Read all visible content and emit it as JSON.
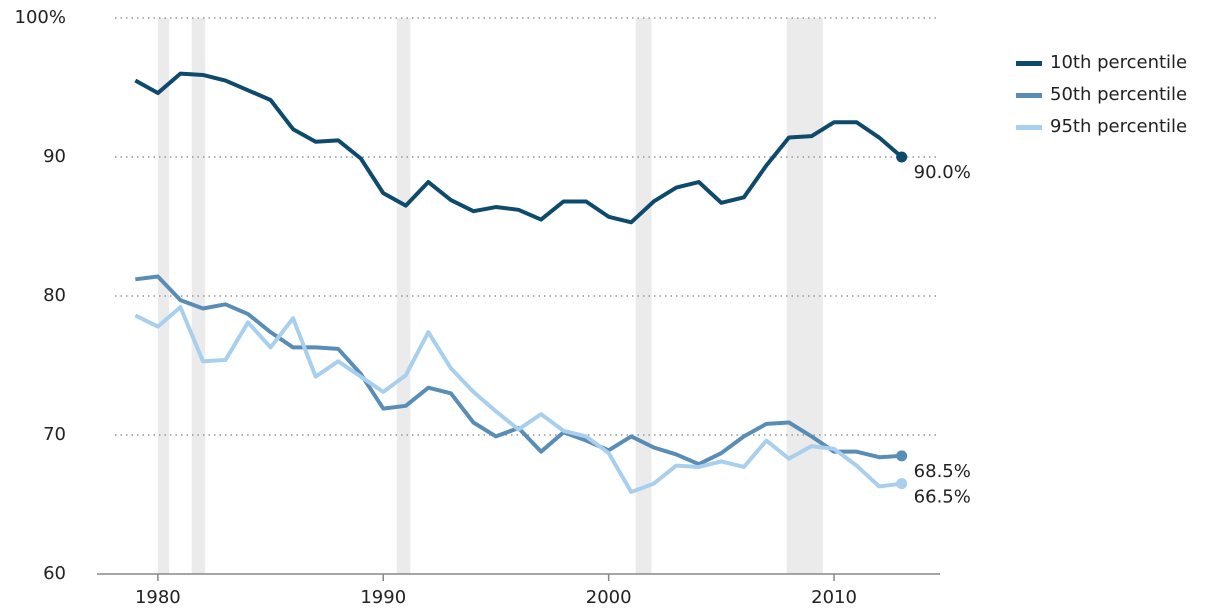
{
  "chart_data": {
    "type": "line",
    "x": [
      1979,
      1980,
      1981,
      1982,
      1983,
      1984,
      1985,
      1986,
      1987,
      1988,
      1989,
      1990,
      1991,
      1992,
      1993,
      1994,
      1995,
      1996,
      1997,
      1998,
      1999,
      2000,
      2001,
      2002,
      2003,
      2004,
      2005,
      2006,
      2007,
      2008,
      2009,
      2010,
      2011,
      2012,
      2013
    ],
    "series": [
      {
        "name": "10th percentile",
        "color": "#0e4a6c",
        "end_label": "90.0%",
        "values": [
          95.5,
          94.6,
          96.0,
          95.9,
          95.5,
          94.8,
          94.1,
          92.0,
          91.1,
          91.2,
          89.9,
          87.4,
          86.5,
          88.2,
          86.9,
          86.1,
          86.4,
          86.2,
          85.5,
          86.8,
          86.8,
          85.7,
          85.3,
          86.8,
          87.8,
          88.2,
          86.7,
          87.1,
          89.4,
          91.4,
          91.5,
          92.5,
          92.5,
          91.4,
          90.0
        ]
      },
      {
        "name": "50th percentile",
        "color": "#5a8db6",
        "end_label": "68.5%",
        "values": [
          81.2,
          81.4,
          79.7,
          79.1,
          79.4,
          78.7,
          77.4,
          76.3,
          76.3,
          76.2,
          74.4,
          71.9,
          72.1,
          73.4,
          73.0,
          70.9,
          69.9,
          70.5,
          68.8,
          70.2,
          69.6,
          68.9,
          69.9,
          69.1,
          68.6,
          67.9,
          68.7,
          69.9,
          70.8,
          70.9,
          69.9,
          68.8,
          68.8,
          68.4,
          68.5
        ]
      },
      {
        "name": "95th percentile",
        "color": "#a9cfee",
        "end_label": "66.5%",
        "values": [
          78.6,
          77.8,
          79.2,
          75.3,
          75.4,
          78.1,
          76.3,
          78.4,
          74.2,
          75.3,
          74.2,
          73.1,
          74.3,
          77.4,
          74.8,
          73.1,
          71.7,
          70.4,
          71.5,
          70.3,
          69.9,
          68.7,
          65.9,
          66.5,
          67.8,
          67.7,
          68.1,
          67.7,
          69.6,
          68.3,
          69.2,
          69.0,
          67.8,
          66.3,
          66.5
        ]
      }
    ],
    "recessions": [
      [
        1980.0,
        1980.5
      ],
      [
        1981.5,
        1982.1
      ],
      [
        1990.6,
        1991.2
      ],
      [
        2001.2,
        2001.9
      ],
      [
        2007.9,
        2009.5
      ]
    ],
    "xlim": [
      1977.3,
      2014.7
    ],
    "xticks": [
      1980,
      1990,
      2000,
      2010
    ],
    "ylim": [
      60,
      100
    ],
    "yticks": [
      {
        "value": 100,
        "label": "100%"
      },
      90,
      80,
      70,
      60
    ],
    "grid": true
  }
}
